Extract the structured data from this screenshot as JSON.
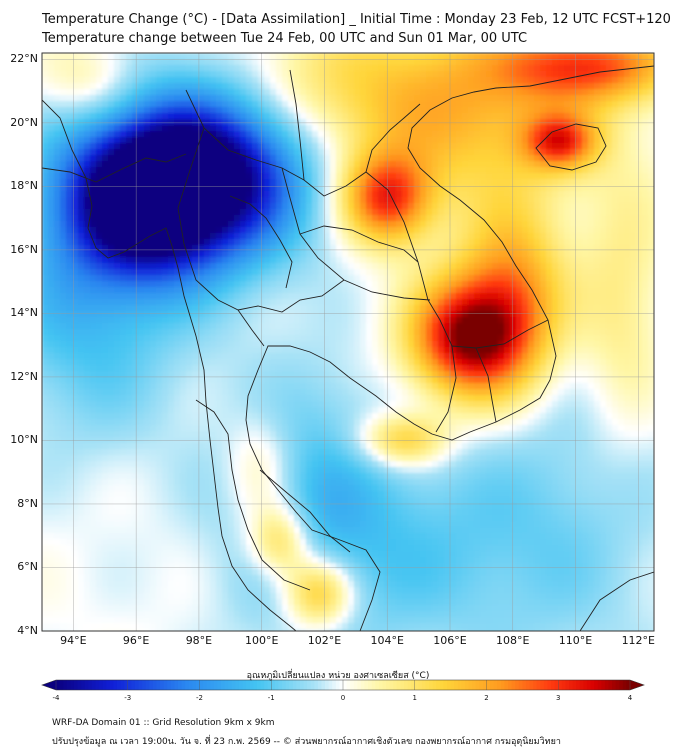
{
  "title": {
    "line1": "Temperature Change (°C) - [Data Assimilation] _ Initial Time : Monday 23 Feb, 12 UTC FCST+120",
    "line2": "Temperature change between Tue 24 Feb, 00 UTC and Sun 01 Mar, 00 UTC"
  },
  "map": {
    "lon_range": [
      93,
      112.5
    ],
    "lat_range": [
      4,
      22.2
    ],
    "lat_ticks": [
      "22°N",
      "20°N",
      "18°N",
      "16°N",
      "14°N",
      "12°N",
      "10°N",
      "8°N",
      "6°N",
      "4°N"
    ],
    "lon_ticks": [
      "94°E",
      "96°E",
      "98°E",
      "100°E",
      "102°E",
      "104°E",
      "106°E",
      "108°E",
      "110°E",
      "112°E"
    ],
    "anomaly_blobs": [
      {
        "lon": 96.5,
        "lat": 17.5,
        "value": -3.8,
        "sx": 1.8,
        "sy": 1.6
      },
      {
        "lon": 97.5,
        "lat": 18.8,
        "value": -2.6,
        "sx": 2.5,
        "sy": 2.0
      },
      {
        "lon": 99.5,
        "lat": 18.5,
        "value": -1.6,
        "sx": 1.8,
        "sy": 2.0
      },
      {
        "lon": 94.5,
        "lat": 14.5,
        "value": -1.4,
        "sx": 2.2,
        "sy": 3.0
      },
      {
        "lon": 101.5,
        "lat": 8.0,
        "value": -1.2,
        "sx": 2.0,
        "sy": 3.0
      },
      {
        "lon": 105.5,
        "lat": 6.5,
        "value": -0.8,
        "sx": 3.0,
        "sy": 2.5
      },
      {
        "lon": 110.0,
        "lat": 8.0,
        "value": -0.6,
        "sx": 2.5,
        "sy": 4.0
      },
      {
        "lon": 106.5,
        "lat": 13.2,
        "value": 3.6,
        "sx": 1.3,
        "sy": 1.3
      },
      {
        "lon": 104.0,
        "lat": 17.6,
        "value": 2.9,
        "sx": 1.0,
        "sy": 1.0
      },
      {
        "lon": 108.0,
        "lat": 14.5,
        "value": 2.2,
        "sx": 1.2,
        "sy": 2.0
      },
      {
        "lon": 109.5,
        "lat": 19.4,
        "value": 2.4,
        "sx": 0.8,
        "sy": 0.6
      },
      {
        "lon": 106.5,
        "lat": 20.5,
        "value": 1.8,
        "sx": 3.0,
        "sy": 2.0
      },
      {
        "lon": 110.5,
        "lat": 21.8,
        "value": 2.4,
        "sx": 2.0,
        "sy": 0.8
      },
      {
        "lon": 101.8,
        "lat": 5.2,
        "value": 2.2,
        "sx": 0.8,
        "sy": 0.8
      },
      {
        "lon": 100.6,
        "lat": 6.8,
        "value": 1.8,
        "sx": 0.7,
        "sy": 0.8
      },
      {
        "lon": 100.0,
        "lat": 9.0,
        "value": 1.0,
        "sx": 0.8,
        "sy": 1.3
      },
      {
        "lon": 104.5,
        "lat": 10.0,
        "value": 1.8,
        "sx": 1.0,
        "sy": 0.6
      },
      {
        "lon": 101.0,
        "lat": 21.0,
        "value": 1.0,
        "sx": 2.5,
        "sy": 1.5
      },
      {
        "lon": 94.5,
        "lat": 21.2,
        "value": 1.0,
        "sx": 1.2,
        "sy": 1.0
      },
      {
        "lon": 111.5,
        "lat": 14.0,
        "value": 0.9,
        "sx": 1.0,
        "sy": 3.0
      }
    ]
  },
  "colorbar": {
    "label": "อุณหภูมิเปลี่ยนแปลง หน่วย องศาเซลเซียส (°C)",
    "ticks": [
      "-4",
      "-3",
      "-2",
      "-1",
      "0",
      "1",
      "2",
      "3",
      "4"
    ],
    "colors": [
      "#0b0080",
      "#1020d8",
      "#2a86f0",
      "#44c4f2",
      "#a8e2f6",
      "#ffffff",
      "#fff7a8",
      "#ffd53a",
      "#ff9a1f",
      "#ff3a10",
      "#d80000",
      "#7a0000"
    ]
  },
  "footer": {
    "line1": "WRF-DA Domain 01 :: Grid Resolution 9km x 9km",
    "line2": "ปรับปรุงข้อมูล ณ เวลา 19:00น. วัน จ. ที่ 23 ก.พ. 2569 -- © ส่วนพยากรณ์อากาศเชิงตัวเลข กองพยากรณ์อากาศ กรมอุตุนิยมวิทยา"
  }
}
